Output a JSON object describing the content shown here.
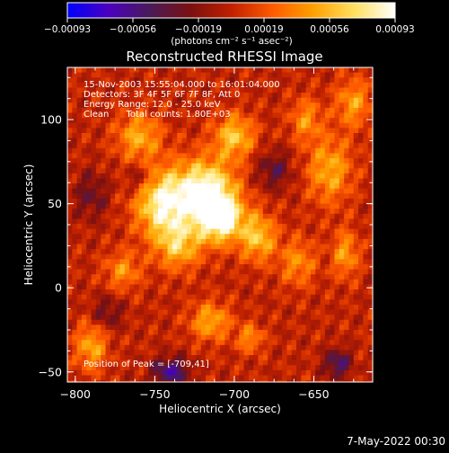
{
  "colorbar": {
    "ticks": [
      "-0.00093",
      "-0.00056",
      "-0.00019",
      "0.00019",
      "0.00056",
      "0.00093"
    ],
    "units": "(photons cm⁻² s⁻¹ asec⁻²)",
    "colors": [
      "#0000ff",
      "#4b00c0",
      "#4a1a5a",
      "#7a1010",
      "#c02000",
      "#ff5a00",
      "#ffa000",
      "#ffe060",
      "#ffffff"
    ]
  },
  "chart_data": {
    "type": "heatmap",
    "title": "Reconstructed RHESSI Image",
    "xlabel": "Heliocentric X (arcsec)",
    "ylabel": "Heliocentric Y (arcsec)",
    "xlim": [
      -805,
      -613
    ],
    "ylim": [
      -56,
      131
    ],
    "x_ticks": [
      -800,
      -750,
      -700,
      -650
    ],
    "y_ticks": [
      -50,
      0,
      50,
      100
    ],
    "x_tick_labels": [
      "−800",
      "−750",
      "−700",
      "−650"
    ],
    "y_tick_labels": [
      "−50",
      "0",
      "50",
      "100"
    ],
    "clim": [
      -0.00093,
      0.00093
    ],
    "peak": [
      -709,
      41
    ],
    "sources": [
      {
        "x": -745,
        "y": 50,
        "amp": 0.00085,
        "sx": 12,
        "sy": 14
      },
      {
        "x": -718,
        "y": 58,
        "amp": 0.0009,
        "sx": 13,
        "sy": 13
      },
      {
        "x": -709,
        "y": 41,
        "amp": 0.00093,
        "sx": 10,
        "sy": 10
      },
      {
        "x": -735,
        "y": 25,
        "amp": 0.00055,
        "sx": 10,
        "sy": 10
      },
      {
        "x": -700,
        "y": 90,
        "amp": 0.0006,
        "sx": 9,
        "sy": 9
      },
      {
        "x": -760,
        "y": 90,
        "amp": 0.0005,
        "sx": 10,
        "sy": 10
      },
      {
        "x": -685,
        "y": 30,
        "amp": 0.0006,
        "sx": 8,
        "sy": 10
      },
      {
        "x": -640,
        "y": 70,
        "amp": 0.0005,
        "sx": 10,
        "sy": 14
      },
      {
        "x": -625,
        "y": 110,
        "amp": 0.00045,
        "sx": 8,
        "sy": 10
      },
      {
        "x": -715,
        "y": -20,
        "amp": 0.0005,
        "sx": 9,
        "sy": 8
      },
      {
        "x": -690,
        "y": -30,
        "amp": 0.0004,
        "sx": 6,
        "sy": 6
      },
      {
        "x": -790,
        "y": -35,
        "amp": 0.0005,
        "sx": 7,
        "sy": 10
      },
      {
        "x": -770,
        "y": 10,
        "amp": 0.0004,
        "sx": 8,
        "sy": 8
      },
      {
        "x": -660,
        "y": 15,
        "amp": 0.0004,
        "sx": 8,
        "sy": 10
      },
      {
        "x": -630,
        "y": 20,
        "amp": 0.00045,
        "sx": 6,
        "sy": 10
      },
      {
        "x": -655,
        "y": 100,
        "amp": 0.0004,
        "sx": 7,
        "sy": 9
      },
      {
        "x": -740,
        "y": -50,
        "amp": -0.0006,
        "sx": 8,
        "sy": 6
      },
      {
        "x": -780,
        "y": -15,
        "amp": -0.0003,
        "sx": 7,
        "sy": 7
      },
      {
        "x": -760,
        "y": 65,
        "amp": -0.0003,
        "sx": 6,
        "sy": 6
      },
      {
        "x": -635,
        "y": -45,
        "amp": -0.0005,
        "sx": 6,
        "sy": 6
      },
      {
        "x": -675,
        "y": 70,
        "amp": -0.00035,
        "sx": 8,
        "sy": 8
      },
      {
        "x": -790,
        "y": 55,
        "amp": -0.0003,
        "sx": 8,
        "sy": 10
      }
    ]
  },
  "info": {
    "line1": "15-Nov-2003 15:55:04.000 to 16:01:04.000",
    "line2": "Detectors: 3F 4F 5F 6F 7F 8F, Att 0",
    "line3": "Energy Range: 12.0 - 25.0 keV",
    "line4": "Clean      Total counts: 1.80E+03",
    "peak_label": "Position of Peak = [-709,41]"
  },
  "timestamp": "7-May-2022 00:30"
}
